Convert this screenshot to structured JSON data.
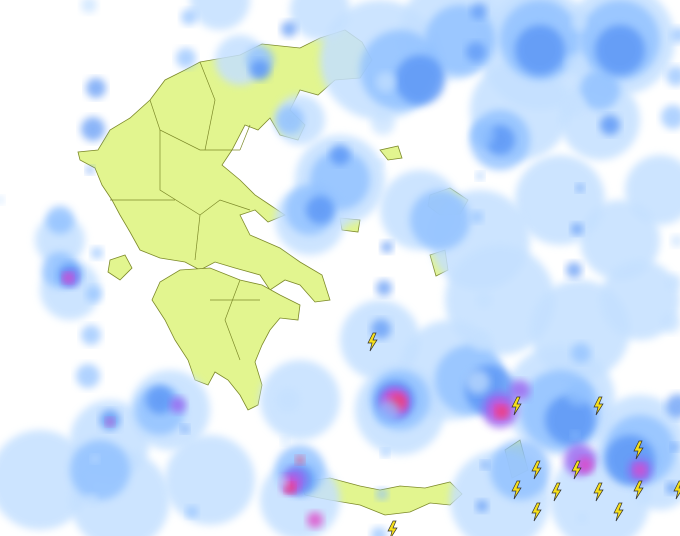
{
  "map": {
    "type": "weather-radar",
    "land_color": "#e2f58f",
    "land_border_color": "#7d8a2a",
    "sea_color": "#ffffff",
    "precip_colors": [
      "#c4e0ff",
      "#8fc0ff",
      "#5a95f5",
      "#9a63ef",
      "#e04ac8",
      "#f23a6a"
    ],
    "lightning_icon": "lightning-bolt-icon",
    "lightning_color": "#f7e01c"
  }
}
